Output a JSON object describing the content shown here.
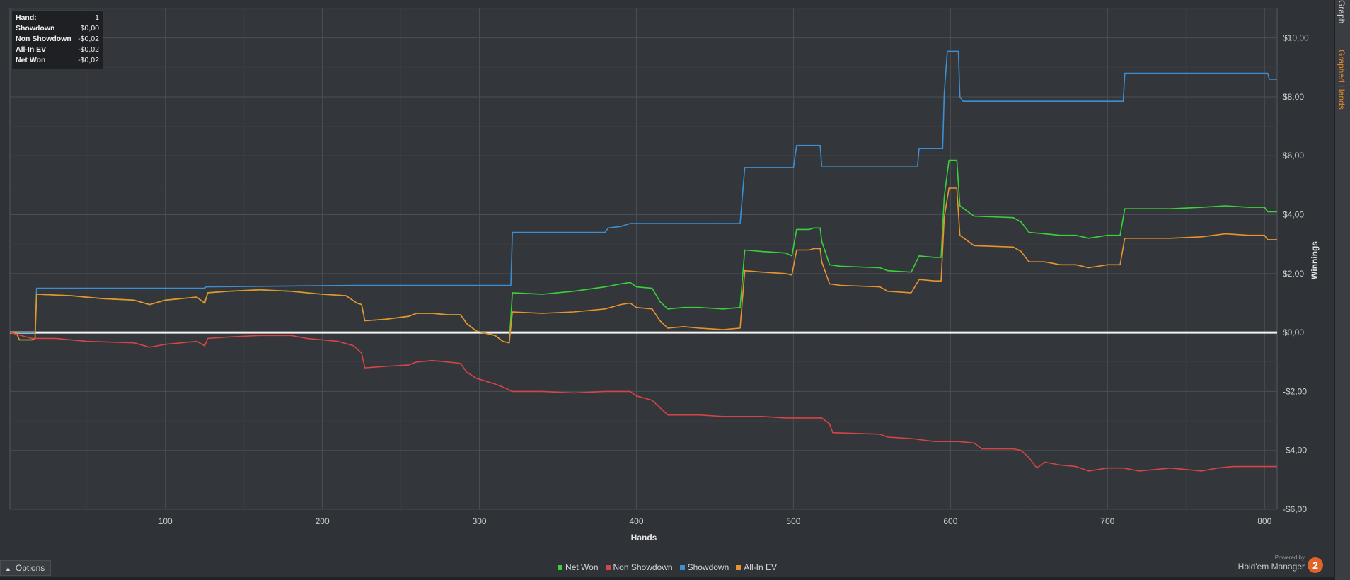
{
  "side_tabs": {
    "graph": "Graph",
    "graphed_hands": "Graphed Hands"
  },
  "hover_box": {
    "rows": [
      {
        "label": "Hand:",
        "value": "1"
      },
      {
        "label": "Showdown",
        "value": "$0,00"
      },
      {
        "label": "Non Showdown",
        "value": "-$0,02"
      },
      {
        "label": "All-In EV",
        "value": "-$0,02"
      },
      {
        "label": "Net Won",
        "value": "-$0,02"
      }
    ]
  },
  "options_label": "Options",
  "brand": {
    "powered": "Powered by",
    "name": "Hold'em Manager",
    "logo": "2",
    "logo_color": "#e0642a"
  },
  "chart_data": {
    "type": "line",
    "xlabel": "Hands",
    "ylabel": "Winnings",
    "xlim": [
      1,
      808
    ],
    "ylim": [
      -6.0,
      11.0
    ],
    "x_ticks": [
      100,
      200,
      300,
      400,
      500,
      600,
      700,
      800
    ],
    "x_tick_labels": [
      "100",
      "200",
      "300",
      "400",
      "500",
      "600",
      "700",
      "800"
    ],
    "y_ticks": [
      -6,
      -4,
      -2,
      0,
      2,
      4,
      6,
      8,
      10
    ],
    "y_tick_labels": [
      "-$6,00",
      "-$4,00",
      "-$2,00",
      "$0,00",
      "$2,00",
      "$4,00",
      "$6,00",
      "$8,00",
      "$10,00"
    ],
    "grid": true,
    "legend_position": "bottom-center",
    "series": [
      {
        "name": "Showdown",
        "color": "#3d8fd1",
        "points": [
          [
            1,
            0
          ],
          [
            17,
            0
          ],
          [
            18,
            1.5
          ],
          [
            60,
            1.5
          ],
          [
            125,
            1.5
          ],
          [
            126,
            1.55
          ],
          [
            220,
            1.6
          ],
          [
            320,
            1.6
          ],
          [
            321,
            3.4
          ],
          [
            380,
            3.4
          ],
          [
            382,
            3.55
          ],
          [
            390,
            3.6
          ],
          [
            396,
            3.7
          ],
          [
            466,
            3.7
          ],
          [
            469,
            5.6
          ],
          [
            500,
            5.6
          ],
          [
            502,
            6.35
          ],
          [
            517,
            6.35
          ],
          [
            518,
            5.65
          ],
          [
            579,
            5.65
          ],
          [
            580,
            6.25
          ],
          [
            595,
            6.25
          ],
          [
            596,
            8.1
          ],
          [
            598,
            9.55
          ],
          [
            605,
            9.55
          ],
          [
            606,
            8.0
          ],
          [
            608,
            7.85
          ],
          [
            700,
            7.85
          ],
          [
            710,
            7.85
          ],
          [
            711,
            8.8
          ],
          [
            802,
            8.8
          ],
          [
            803,
            8.6
          ],
          [
            808,
            8.6
          ]
        ]
      },
      {
        "name": "Net Won",
        "color": "#3ad23a",
        "points": [
          [
            1,
            0
          ],
          [
            5,
            0
          ],
          [
            7,
            -0.25
          ],
          [
            15,
            -0.25
          ],
          [
            17,
            -0.2
          ],
          [
            18,
            1.3
          ],
          [
            40,
            1.25
          ],
          [
            60,
            1.15
          ],
          [
            80,
            1.1
          ],
          [
            90,
            0.95
          ],
          [
            100,
            1.1
          ],
          [
            120,
            1.2
          ],
          [
            125,
            1.0
          ],
          [
            127,
            1.35
          ],
          [
            140,
            1.4
          ],
          [
            160,
            1.45
          ],
          [
            180,
            1.4
          ],
          [
            200,
            1.3
          ],
          [
            215,
            1.25
          ],
          [
            222,
            1.0
          ],
          [
            225,
            0.95
          ],
          [
            227,
            0.4
          ],
          [
            240,
            0.45
          ],
          [
            255,
            0.55
          ],
          [
            260,
            0.65
          ],
          [
            270,
            0.65
          ],
          [
            280,
            0.6
          ],
          [
            288,
            0.6
          ],
          [
            292,
            0.3
          ],
          [
            298,
            0.05
          ],
          [
            310,
            -0.1
          ],
          [
            315,
            -0.3
          ],
          [
            319,
            -0.35
          ],
          [
            321,
            1.35
          ],
          [
            340,
            1.3
          ],
          [
            360,
            1.4
          ],
          [
            380,
            1.55
          ],
          [
            390,
            1.65
          ],
          [
            396,
            1.7
          ],
          [
            400,
            1.55
          ],
          [
            410,
            1.5
          ],
          [
            415,
            1.05
          ],
          [
            420,
            0.8
          ],
          [
            430,
            0.85
          ],
          [
            440,
            0.85
          ],
          [
            455,
            0.8
          ],
          [
            466,
            0.85
          ],
          [
            469,
            2.8
          ],
          [
            480,
            2.75
          ],
          [
            495,
            2.7
          ],
          [
            499,
            2.6
          ],
          [
            502,
            3.5
          ],
          [
            510,
            3.5
          ],
          [
            513,
            3.55
          ],
          [
            517,
            3.55
          ],
          [
            518,
            3.1
          ],
          [
            523,
            2.3
          ],
          [
            530,
            2.25
          ],
          [
            555,
            2.2
          ],
          [
            560,
            2.1
          ],
          [
            575,
            2.05
          ],
          [
            580,
            2.6
          ],
          [
            590,
            2.55
          ],
          [
            594,
            2.55
          ],
          [
            596,
            4.6
          ],
          [
            599,
            5.85
          ],
          [
            604,
            5.85
          ],
          [
            606,
            4.3
          ],
          [
            615,
            3.95
          ],
          [
            640,
            3.9
          ],
          [
            645,
            3.75
          ],
          [
            650,
            3.4
          ],
          [
            660,
            3.35
          ],
          [
            670,
            3.3
          ],
          [
            680,
            3.3
          ],
          [
            688,
            3.2
          ],
          [
            700,
            3.3
          ],
          [
            708,
            3.3
          ],
          [
            711,
            4.2
          ],
          [
            740,
            4.2
          ],
          [
            760,
            4.25
          ],
          [
            775,
            4.3
          ],
          [
            790,
            4.25
          ],
          [
            800,
            4.25
          ],
          [
            802,
            4.1
          ],
          [
            808,
            4.1
          ]
        ]
      },
      {
        "name": "All-In EV",
        "color": "#e8932e",
        "points": [
          [
            1,
            0
          ],
          [
            5,
            0
          ],
          [
            7,
            -0.25
          ],
          [
            15,
            -0.25
          ],
          [
            17,
            -0.2
          ],
          [
            18,
            1.3
          ],
          [
            40,
            1.25
          ],
          [
            60,
            1.15
          ],
          [
            80,
            1.1
          ],
          [
            90,
            0.95
          ],
          [
            100,
            1.1
          ],
          [
            120,
            1.2
          ],
          [
            125,
            1.0
          ],
          [
            127,
            1.35
          ],
          [
            140,
            1.4
          ],
          [
            160,
            1.45
          ],
          [
            180,
            1.4
          ],
          [
            200,
            1.3
          ],
          [
            215,
            1.25
          ],
          [
            222,
            1.0
          ],
          [
            225,
            0.95
          ],
          [
            227,
            0.4
          ],
          [
            240,
            0.45
          ],
          [
            255,
            0.55
          ],
          [
            260,
            0.65
          ],
          [
            270,
            0.65
          ],
          [
            280,
            0.6
          ],
          [
            288,
            0.6
          ],
          [
            292,
            0.3
          ],
          [
            298,
            0.05
          ],
          [
            310,
            -0.1
          ],
          [
            315,
            -0.3
          ],
          [
            319,
            -0.35
          ],
          [
            321,
            0.7
          ],
          [
            340,
            0.65
          ],
          [
            360,
            0.7
          ],
          [
            380,
            0.8
          ],
          [
            390,
            0.95
          ],
          [
            396,
            1.0
          ],
          [
            400,
            0.85
          ],
          [
            410,
            0.8
          ],
          [
            415,
            0.4
          ],
          [
            420,
            0.15
          ],
          [
            430,
            0.2
          ],
          [
            440,
            0.15
          ],
          [
            455,
            0.1
          ],
          [
            466,
            0.15
          ],
          [
            469,
            2.1
          ],
          [
            480,
            2.05
          ],
          [
            495,
            2.0
          ],
          [
            499,
            1.95
          ],
          [
            502,
            2.8
          ],
          [
            510,
            2.8
          ],
          [
            513,
            2.85
          ],
          [
            517,
            2.85
          ],
          [
            518,
            2.4
          ],
          [
            523,
            1.65
          ],
          [
            530,
            1.6
          ],
          [
            555,
            1.55
          ],
          [
            560,
            1.4
          ],
          [
            575,
            1.35
          ],
          [
            580,
            1.8
          ],
          [
            590,
            1.75
          ],
          [
            594,
            1.75
          ],
          [
            596,
            3.9
          ],
          [
            599,
            4.9
          ],
          [
            604,
            4.9
          ],
          [
            606,
            3.3
          ],
          [
            615,
            2.95
          ],
          [
            640,
            2.9
          ],
          [
            645,
            2.75
          ],
          [
            650,
            2.4
          ],
          [
            660,
            2.4
          ],
          [
            670,
            2.3
          ],
          [
            680,
            2.3
          ],
          [
            688,
            2.2
          ],
          [
            700,
            2.3
          ],
          [
            708,
            2.3
          ],
          [
            711,
            3.2
          ],
          [
            740,
            3.2
          ],
          [
            760,
            3.25
          ],
          [
            775,
            3.35
          ],
          [
            790,
            3.3
          ],
          [
            800,
            3.3
          ],
          [
            802,
            3.15
          ],
          [
            808,
            3.15
          ]
        ]
      },
      {
        "name": "Non Showdown",
        "color": "#d44545",
        "points": [
          [
            1,
            0
          ],
          [
            15,
            -0.2
          ],
          [
            30,
            -0.2
          ],
          [
            50,
            -0.3
          ],
          [
            80,
            -0.35
          ],
          [
            90,
            -0.5
          ],
          [
            100,
            -0.4
          ],
          [
            110,
            -0.35
          ],
          [
            120,
            -0.3
          ],
          [
            125,
            -0.45
          ],
          [
            127,
            -0.2
          ],
          [
            140,
            -0.15
          ],
          [
            160,
            -0.1
          ],
          [
            180,
            -0.1
          ],
          [
            190,
            -0.2
          ],
          [
            210,
            -0.3
          ],
          [
            220,
            -0.45
          ],
          [
            225,
            -0.7
          ],
          [
            227,
            -1.2
          ],
          [
            240,
            -1.15
          ],
          [
            255,
            -1.1
          ],
          [
            260,
            -1.0
          ],
          [
            270,
            -0.95
          ],
          [
            280,
            -1.0
          ],
          [
            288,
            -1.05
          ],
          [
            292,
            -1.35
          ],
          [
            298,
            -1.55
          ],
          [
            310,
            -1.75
          ],
          [
            315,
            -1.85
          ],
          [
            321,
            -2.0
          ],
          [
            340,
            -2.0
          ],
          [
            360,
            -2.05
          ],
          [
            380,
            -2.0
          ],
          [
            396,
            -2.0
          ],
          [
            400,
            -2.15
          ],
          [
            410,
            -2.3
          ],
          [
            415,
            -2.55
          ],
          [
            420,
            -2.8
          ],
          [
            440,
            -2.8
          ],
          [
            455,
            -2.85
          ],
          [
            466,
            -2.85
          ],
          [
            480,
            -2.85
          ],
          [
            495,
            -2.9
          ],
          [
            510,
            -2.9
          ],
          [
            518,
            -2.9
          ],
          [
            523,
            -3.1
          ],
          [
            525,
            -3.4
          ],
          [
            555,
            -3.45
          ],
          [
            560,
            -3.55
          ],
          [
            575,
            -3.6
          ],
          [
            590,
            -3.7
          ],
          [
            605,
            -3.7
          ],
          [
            615,
            -3.75
          ],
          [
            620,
            -3.95
          ],
          [
            640,
            -3.95
          ],
          [
            645,
            -4.0
          ],
          [
            650,
            -4.25
          ],
          [
            655,
            -4.6
          ],
          [
            660,
            -4.4
          ],
          [
            670,
            -4.5
          ],
          [
            680,
            -4.55
          ],
          [
            688,
            -4.7
          ],
          [
            700,
            -4.6
          ],
          [
            710,
            -4.6
          ],
          [
            720,
            -4.7
          ],
          [
            740,
            -4.6
          ],
          [
            760,
            -4.7
          ],
          [
            770,
            -4.6
          ],
          [
            780,
            -4.55
          ],
          [
            790,
            -4.55
          ],
          [
            800,
            -4.55
          ],
          [
            808,
            -4.55
          ]
        ]
      }
    ],
    "legend": [
      {
        "name": "Net Won",
        "color": "#3ad23a"
      },
      {
        "name": "Non Showdown",
        "color": "#d44545"
      },
      {
        "name": "Showdown",
        "color": "#3d8fd1"
      },
      {
        "name": "All-In EV",
        "color": "#e8932e"
      }
    ]
  }
}
